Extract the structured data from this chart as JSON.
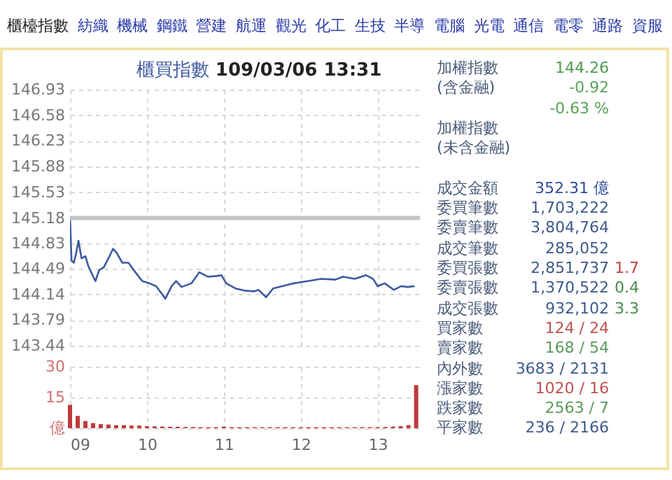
{
  "chart_data": [
    {
      "type": "other",
      "categories": [
        "櫃檯指數",
        "紡織",
        "機械",
        "鋼鐵",
        "營建",
        "航運",
        "觀光",
        "化工",
        "生技",
        "半導",
        "電腦",
        "光電",
        "通信",
        "電零",
        "通路",
        "資服"
      ],
      "colors": [
        "#222222",
        "#2a3aa8",
        "#2a3aa8",
        "#2a3aa8",
        "#2a3aa8",
        "#2a3aa8",
        "#2a3aa8",
        "#2a3aa8",
        "#2a3aa8",
        "#2a3aa8",
        "#2a3aa8",
        "#2a3aa8",
        "#2a3aa8",
        "#2a3aa8",
        "#2a3aa8",
        "#2a3aa8"
      ]
    },
    {
      "type": "line",
      "title": "櫃買指數 109/03/06 13:31",
      "xlim": [
        9,
        13.55
      ],
      "xticks": [
        9,
        10,
        11,
        12,
        13
      ],
      "ylim": [
        143.44,
        146.93
      ],
      "yticks": [
        143.44,
        143.79,
        144.14,
        144.49,
        144.83,
        145.18,
        145.53,
        145.88,
        146.23,
        146.58,
        146.93
      ],
      "grid": true,
      "tick_labels": "y",
      "ref_lines": [
        {
          "axis": "y",
          "value": 145.18,
          "color": "#c4c4c4"
        }
      ],
      "series": [
        {
          "color": "#3d5a9e",
          "x": [
            9,
            9.02,
            9.05,
            9.08,
            9.11,
            9.15,
            9.2,
            9.24,
            9.33,
            9.38,
            9.44,
            9.5,
            9.56,
            9.61,
            9.68,
            9.76,
            9.85,
            9.94,
            10.03,
            10.12,
            10.24,
            10.32,
            10.38,
            10.45,
            10.58,
            10.68,
            10.79,
            10.91,
            10.97,
            11.03,
            11.15,
            11.27,
            11.39,
            11.45,
            11.55,
            11.64,
            11.76,
            11.91,
            12.09,
            12.27,
            12.45,
            12.55,
            12.7,
            12.85,
            12.94,
            13,
            13.09,
            13.21,
            13.3,
            13.39,
            13.48
          ],
          "values": [
            145.2,
            144.6,
            144.57,
            144.7,
            144.87,
            144.63,
            144.66,
            144.52,
            144.32,
            144.47,
            144.51,
            144.63,
            144.76,
            144.7,
            144.57,
            144.57,
            144.44,
            144.32,
            144.29,
            144.25,
            144.08,
            144.25,
            144.32,
            144.24,
            144.29,
            144.44,
            144.38,
            144.39,
            144.4,
            144.29,
            144.22,
            144.19,
            144.18,
            144.2,
            144.1,
            144.22,
            144.25,
            144.29,
            144.32,
            144.35,
            144.34,
            144.38,
            144.35,
            144.4,
            144.35,
            144.25,
            144.29,
            144.2,
            144.25,
            144.24,
            144.25
          ]
        }
      ]
    },
    {
      "type": "bar",
      "xlim": [
        9,
        13.55
      ],
      "xticks": [
        {
          "value": 9,
          "label": "09"
        },
        10,
        11,
        12,
        13
      ],
      "ylim": [
        0,
        30
      ],
      "yticks": [
        {
          "value": 0,
          "label": "億"
        },
        15,
        30
      ],
      "grid": true,
      "series": [
        {
          "color": "#c0393b",
          "x": [
            9,
            9.1,
            9.2,
            9.3,
            9.4,
            9.5,
            9.6,
            9.7,
            9.8,
            9.9,
            10,
            10.1,
            10.2,
            10.3,
            10.4,
            10.5,
            10.6,
            10.7,
            10.8,
            10.9,
            11,
            11.1,
            11.2,
            11.3,
            11.4,
            11.5,
            11.6,
            11.7,
            11.8,
            11.9,
            12,
            12.1,
            12.2,
            12.3,
            12.4,
            12.5,
            12.6,
            12.7,
            12.8,
            12.9,
            13,
            13.1,
            13.2,
            13.3,
            13.4,
            13.5
          ],
          "values": [
            11.4,
            6,
            3.5,
            2.5,
            2,
            1.8,
            1.5,
            1.5,
            1.3,
            1.3,
            1,
            0.9,
            0.8,
            0.7,
            0.7,
            0.6,
            0.6,
            0.5,
            0.5,
            0.5,
            0.8,
            0.5,
            0.5,
            0.5,
            0.5,
            0.5,
            0.5,
            0.5,
            0.5,
            0.5,
            0.5,
            0.5,
            0.5,
            0.5,
            0.5,
            0.5,
            0.5,
            0.5,
            0.5,
            0.5,
            0.5,
            0.6,
            0.8,
            1,
            1.5,
            21
          ]
        }
      ]
    },
    {
      "type": "other",
      "categories": [
        null,
        null
      ],
      "y_categories": [
        "加權指數",
        "(含金融)",
        null,
        "加權指數",
        "(未含金融)",
        null,
        "成交金額",
        "委買筆數",
        "委賣筆數",
        "成交筆數",
        "委買張數",
        "委賣張數",
        "成交張數",
        "買家數",
        "賣家數",
        "內外數",
        "漲家數",
        "跌家數",
        "平家數"
      ],
      "cell_labels": [
        [
          "144.26",
          null
        ],
        [
          "-0.92",
          null
        ],
        [
          "-0.63 %",
          null
        ],
        [
          null,
          null
        ],
        [
          null,
          null
        ],
        [
          null,
          null
        ],
        [
          "352.31 億",
          null
        ],
        [
          "1,703,222",
          null
        ],
        [
          "3,804,764",
          null
        ],
        [
          "285,052",
          null
        ],
        [
          "2,851,737",
          "1.7"
        ],
        [
          "1,370,522",
          "0.4"
        ],
        [
          "932,102",
          "3.3"
        ],
        [
          "124 / 24",
          null
        ],
        [
          "168 / 54",
          null
        ],
        [
          "3683 / 2131",
          null
        ],
        [
          "1020 / 16",
          null
        ],
        [
          "2563 / 7",
          null
        ],
        [
          "236 / 2166",
          null
        ]
      ],
      "colors": [
        [
          "#4c9a4c",
          null
        ],
        [
          "#5aa05a",
          null
        ],
        [
          "#5aa05a",
          null
        ],
        [
          null,
          null
        ],
        [
          null,
          null
        ],
        [
          null,
          null
        ],
        [
          "#2d4a9a",
          null
        ],
        [
          "#3d5a8a",
          null
        ],
        [
          "#3d5a8a",
          null
        ],
        [
          "#3d5a8a",
          null
        ],
        [
          "#3d5a8a",
          "#c04040"
        ],
        [
          "#3d5a8a",
          "#4a8a4a"
        ],
        [
          "#3d5a8a",
          "#4a8a4a"
        ],
        [
          "#c05050",
          null
        ],
        [
          "#5a9a5a",
          null
        ],
        [
          "#3d5a8a",
          null
        ],
        [
          "#c05050",
          null
        ],
        [
          "#5a9a5a",
          null
        ],
        [
          "#3d5a8a",
          null
        ]
      ]
    }
  ]
}
